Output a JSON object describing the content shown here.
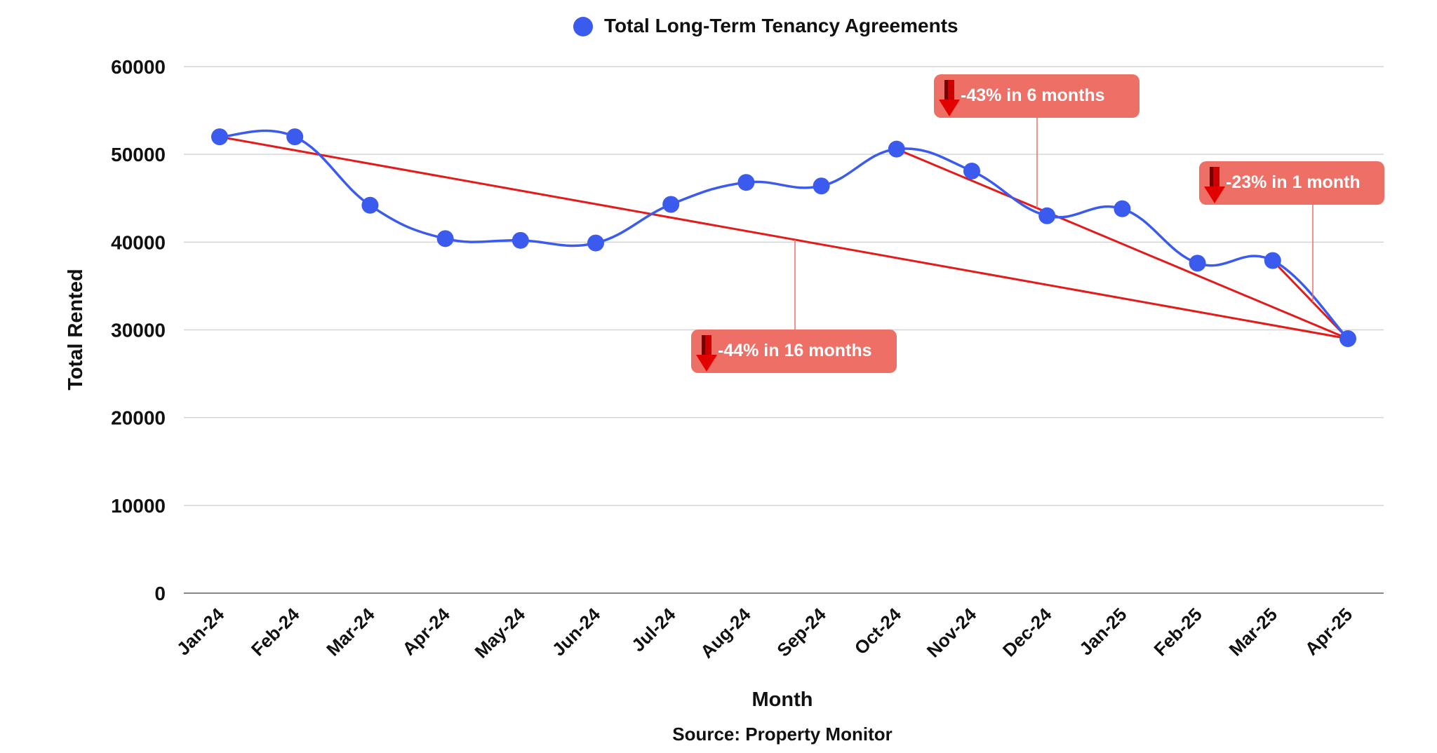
{
  "chart_data": {
    "type": "line",
    "title": "",
    "xlabel": "Month",
    "ylabel": "Total Rented",
    "ylim": [
      0,
      60000
    ],
    "yticks": [
      0,
      10000,
      20000,
      30000,
      40000,
      50000,
      60000
    ],
    "grid": true,
    "legend_placement": "top-center",
    "categories": [
      "Jan-24",
      "Feb-24",
      "Mar-24",
      "Apr-24",
      "May-24",
      "Jun-24",
      "Jul-24",
      "Aug-24",
      "Sep-24",
      "Oct-24",
      "Nov-24",
      "Dec-24",
      "Jan-25",
      "Feb-25",
      "Mar-25",
      "Apr-25"
    ],
    "series": [
      {
        "name": "Total Long-Term Tenancy Agreements",
        "color": "#3b5bef",
        "values": [
          52000,
          52000,
          44200,
          40400,
          40200,
          39900,
          44300,
          46800,
          46400,
          50600,
          48100,
          43000,
          43800,
          37600,
          37900,
          29000
        ]
      }
    ],
    "trend_lines": [
      {
        "from": "Jan-24",
        "to": "Apr-25",
        "from_value": 52000,
        "to_value": 29000,
        "label": "-44% in 16 months"
      },
      {
        "from": "Oct-24",
        "to": "Apr-25",
        "from_value": 50600,
        "to_value": 29000,
        "label": "-43% in 6 months"
      },
      {
        "from": "Mar-25",
        "to": "Apr-25",
        "from_value": 37900,
        "to_value": 29000,
        "label": "-23% in 1 month"
      }
    ],
    "trend_color": "#e31b1b",
    "annotation_fill": "#ee6f65",
    "source": "Source: Property Monitor"
  }
}
